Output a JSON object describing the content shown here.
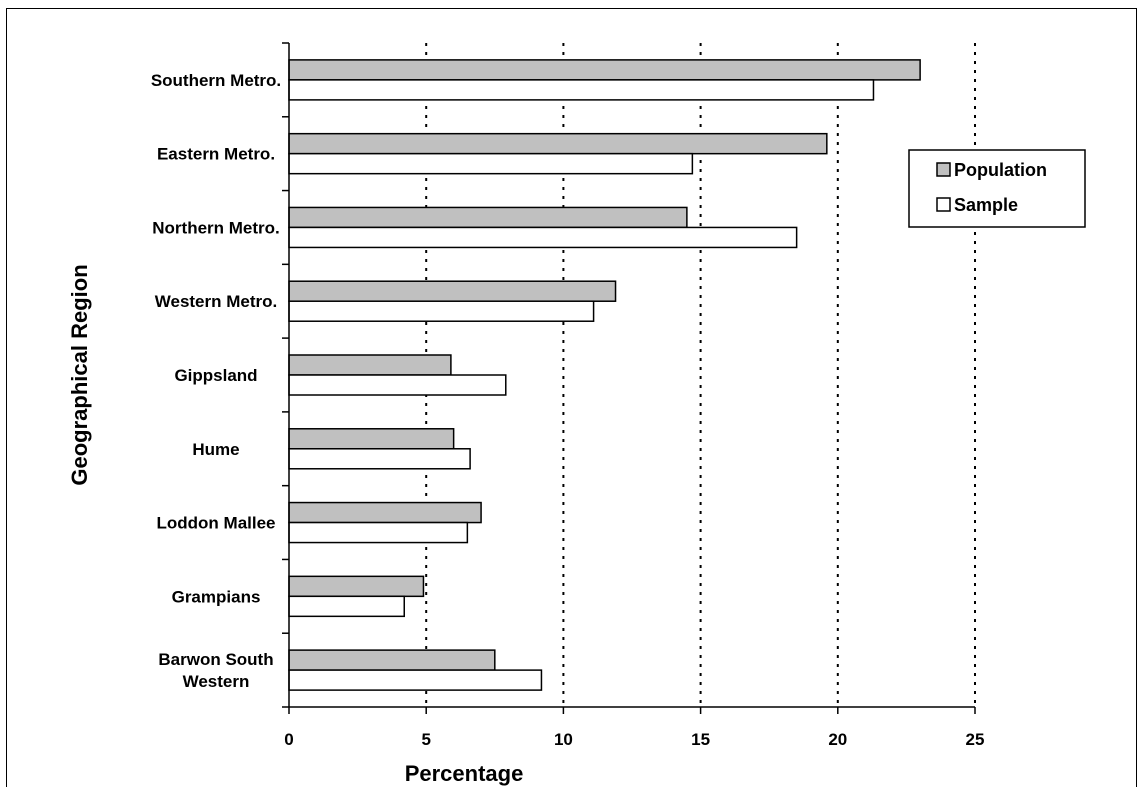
{
  "chart_data": {
    "type": "bar",
    "orientation": "horizontal",
    "categories": [
      "Southern Metro.",
      "Eastern Metro.",
      "Northern Metro.",
      "Western Metro.",
      "Gippsland",
      "Hume",
      "Loddon Mallee",
      "Grampians",
      "Barwon South Western"
    ],
    "category_lines": [
      [
        "Southern Metro."
      ],
      [
        "Eastern Metro."
      ],
      [
        "Northern Metro."
      ],
      [
        "Western Metro."
      ],
      [
        "Gippsland"
      ],
      [
        "Hume"
      ],
      [
        "Loddon Mallee"
      ],
      [
        "Grampians"
      ],
      [
        "Barwon South",
        "Western"
      ]
    ],
    "series": [
      {
        "name": "Population",
        "color": "#c0c0c0",
        "values": [
          23.0,
          19.6,
          14.5,
          11.9,
          5.9,
          6.0,
          7.0,
          4.9,
          7.5
        ]
      },
      {
        "name": "Sample",
        "color": "#ffffff",
        "values": [
          21.3,
          14.7,
          18.5,
          11.1,
          7.9,
          6.6,
          6.5,
          4.2,
          9.2
        ]
      }
    ],
    "xlabel": "Percentage",
    "ylabel": "Geographical Region",
    "xlim": [
      0,
      25
    ],
    "xticks": [
      0,
      5,
      10,
      15,
      20,
      25
    ],
    "xtick_labels": [
      "0",
      "5",
      "10",
      "15",
      "20",
      "25"
    ],
    "grid": "vertical dotted",
    "legend_position": "right"
  }
}
